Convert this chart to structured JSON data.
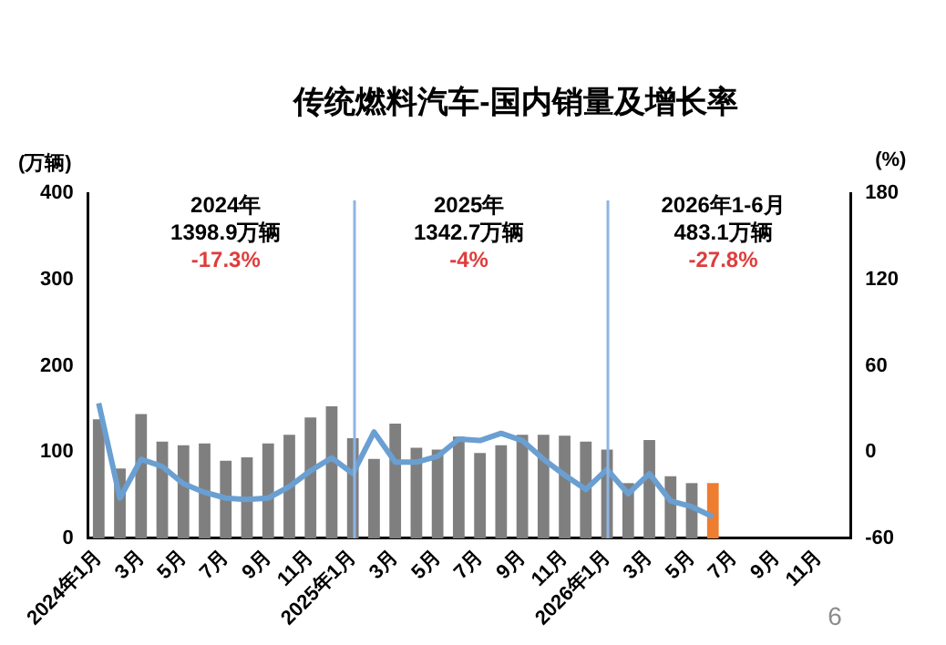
{
  "chart_data": {
    "type": "bar",
    "title": "传统燃料汽车-国内销量及增长率",
    "ylabel": "(万辆)",
    "y2label": "(%)",
    "categories": [
      "2024年1月",
      null,
      "3月",
      null,
      "5月",
      null,
      "7月",
      null,
      "9月",
      null,
      "11月",
      null,
      "2025年1月",
      null,
      "3月",
      null,
      "5月",
      null,
      "7月",
      null,
      "9月",
      null,
      "11月",
      null,
      "2026年1月",
      null,
      "3月",
      null,
      "5月",
      null,
      "7月",
      null,
      "9月",
      null,
      "11月",
      null
    ],
    "series": [
      {
        "colors": [
          "#7f7f7f",
          "#7f7f7f",
          "#7f7f7f",
          "#7f7f7f",
          "#7f7f7f",
          "#7f7f7f",
          "#7f7f7f",
          "#7f7f7f",
          "#7f7f7f",
          "#7f7f7f",
          "#7f7f7f",
          "#7f7f7f",
          "#7f7f7f",
          "#7f7f7f",
          "#7f7f7f",
          "#7f7f7f",
          "#7f7f7f",
          "#7f7f7f",
          "#7f7f7f",
          "#7f7f7f",
          "#7f7f7f",
          "#7f7f7f",
          "#7f7f7f",
          "#7f7f7f",
          "#7f7f7f",
          "#7f7f7f",
          "#7f7f7f",
          "#7f7f7f",
          "#7f7f7f",
          "#ed7d31",
          null,
          null,
          null,
          null,
          null,
          null
        ],
        "values": [
          138,
          81,
          144,
          112,
          108,
          110,
          90,
          94,
          110,
          120,
          140,
          153,
          116,
          92,
          133,
          105,
          103,
          118,
          99,
          108,
          120,
          120,
          119,
          112,
          103,
          64,
          114,
          72,
          64,
          64,
          null,
          null,
          null,
          null,
          null,
          null
        ]
      },
      {
        "type": "line",
        "axis": "y2",
        "color": "#6a9fd2",
        "values": [
          34,
          -32,
          -5,
          -10,
          -22,
          -28,
          -32,
          -33,
          -32,
          -24,
          -13,
          -4,
          -15,
          14,
          -7,
          -7,
          -3,
          9,
          8,
          13,
          8,
          -5,
          -16,
          -26,
          -12,
          -29,
          -15,
          -34,
          -38,
          -45,
          null,
          null,
          null,
          null,
          null,
          null
        ]
      }
    ],
    "ylim": [
      0,
      400
    ],
    "yticks": [
      0,
      100,
      200,
      300,
      400
    ],
    "y2lim": [
      -60,
      180
    ],
    "y2ticks": [
      -60,
      0,
      60,
      120,
      180
    ],
    "ref_lines": [
      {
        "axis": "x",
        "value": "2025年1月",
        "label": null,
        "color": "#8eb4e3"
      },
      {
        "axis": "x",
        "value": "2026年1月",
        "label": null,
        "color": "#8eb4e3"
      }
    ],
    "annotations": [
      "2024年",
      "1398.9万辆",
      "-17.3%",
      "2025年",
      "1342.7万辆",
      "-4%",
      "2026年1-6月",
      "483.1万辆",
      "-27.8%",
      "6"
    ],
    "grid": false,
    "legend": false,
    "marker": "none",
    "line_style": "solid"
  }
}
